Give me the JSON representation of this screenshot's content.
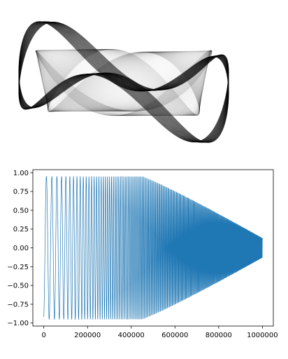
{
  "chart_data": [
    {
      "type": "line",
      "title": "",
      "xlabel": "",
      "ylabel": "",
      "axes_visible": false,
      "grid": false,
      "legend": "none",
      "series": [
        {
          "color": "#000000",
          "curve": "lissajous-like rotating loop pattern drawn with many thin overlapping strokes"
        }
      ]
    },
    {
      "type": "line",
      "title": "",
      "xlabel": "",
      "ylabel": "",
      "xlim": [
        -50000,
        1050000
      ],
      "ylim": [
        -1.04,
        1.04
      ],
      "xticks": [
        0,
        200000,
        400000,
        600000,
        800000,
        1000000
      ],
      "xtick_labels": [
        "0",
        "200000",
        "400000",
        "600000",
        "800000",
        "1000000"
      ],
      "yticks": [
        -1.0,
        -0.75,
        -0.5,
        -0.25,
        0.0,
        0.25,
        0.5,
        0.75,
        1.0
      ],
      "ytick_labels": [
        "−1.00",
        "−0.75",
        "−0.50",
        "−0.25",
        "0.00",
        "0.25",
        "0.50",
        "0.75",
        "1.00"
      ],
      "grid": false,
      "legend": "none",
      "series": [
        {
          "color": "#1f77b4",
          "x_start": 0,
          "x_end": 1000000,
          "y_start": -0.92,
          "peak_amplitude": 0.95,
          "end_amplitude": 0.13,
          "first_peak_x": 25000,
          "visible_oscillations_by_700000": 50
        }
      ]
    }
  ]
}
